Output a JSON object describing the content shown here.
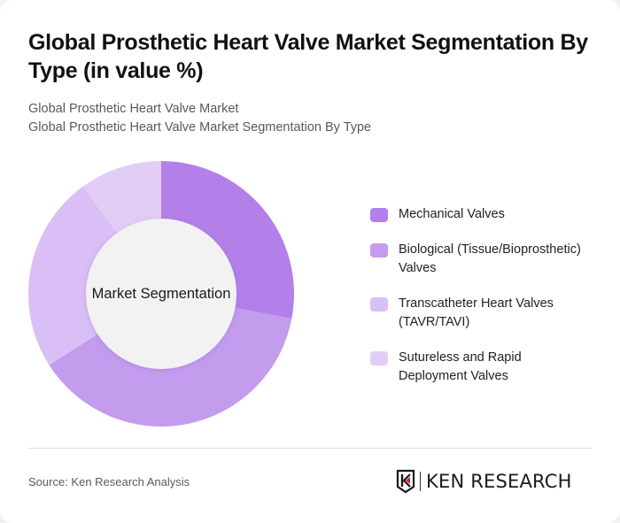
{
  "header": {
    "title": "Global Prosthetic Heart Valve Market Segmentation By Type (in value %)",
    "subtitle_line1": "Global Prosthetic Heart Valve Market",
    "subtitle_line2": "Global Prosthetic Heart Valve Market Segmentation By Type"
  },
  "chart": {
    "center_label": "Market Segmentation"
  },
  "legend": {
    "items": [
      {
        "label": "Mechanical Valves",
        "color": "#b380ea"
      },
      {
        "label": "Biological (Tissue/Bioprosthetic) Valves",
        "color": "#c49cee"
      },
      {
        "label": "Transcatheter Heart Valves (TAVR/TAVI)",
        "color": "#d9bff5"
      },
      {
        "label": "Sutureless and Rapid Deployment Valves",
        "color": "#e2cdf7"
      }
    ]
  },
  "footer": {
    "source": "Source: Ken Research Analysis",
    "logo_text": "KEN RESEARCH"
  },
  "chart_data": {
    "type": "pie",
    "subtype": "donut",
    "title": "Global Prosthetic Heart Valve Market Segmentation By Type (in value %)",
    "subtitle": "Global Prosthetic Heart Valve Market / Global Prosthetic Heart Valve Market Segmentation By Type",
    "center_label": "Market Segmentation",
    "categories": [
      "Mechanical Valves",
      "Biological (Tissue/Bioprosthetic) Valves",
      "Transcatheter Heart Valves (TAVR/TAVI)",
      "Sutureless and Rapid Deployment Valves"
    ],
    "values": [
      28,
      38,
      24,
      10
    ],
    "colors": [
      "#b380ea",
      "#c49cee",
      "#d9bff5",
      "#e2cdf7"
    ],
    "unit": "%",
    "start_angle": "12 o'clock, clockwise",
    "legend_position": "right",
    "data_labels": false
  }
}
